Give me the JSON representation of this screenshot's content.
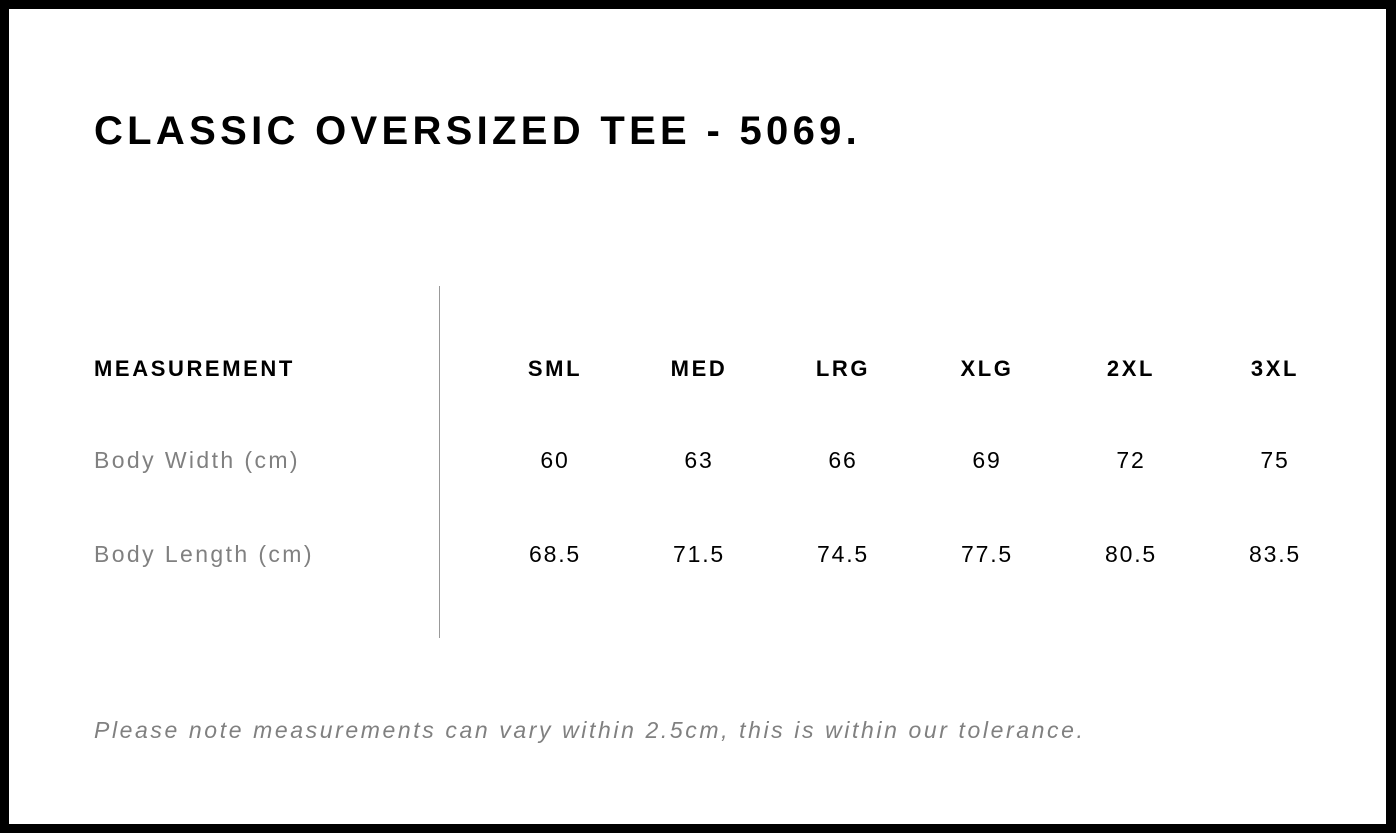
{
  "title": "CLASSIC OVERSIZED TEE - 5069.",
  "table": {
    "header_label": "MEASUREMENT",
    "sizes": [
      "SML",
      "MED",
      "LRG",
      "XLG",
      "2XL",
      "3XL"
    ],
    "rows": [
      {
        "label": "Body Width (cm)",
        "values": [
          "60",
          "63",
          "66",
          "69",
          "72",
          "75"
        ]
      },
      {
        "label": "Body Length (cm)",
        "values": [
          "68.5",
          "71.5",
          "74.5",
          "77.5",
          "80.5",
          "83.5"
        ]
      }
    ]
  },
  "note": "Please note measurements can vary within 2.5cm, this is within our tolerance."
}
